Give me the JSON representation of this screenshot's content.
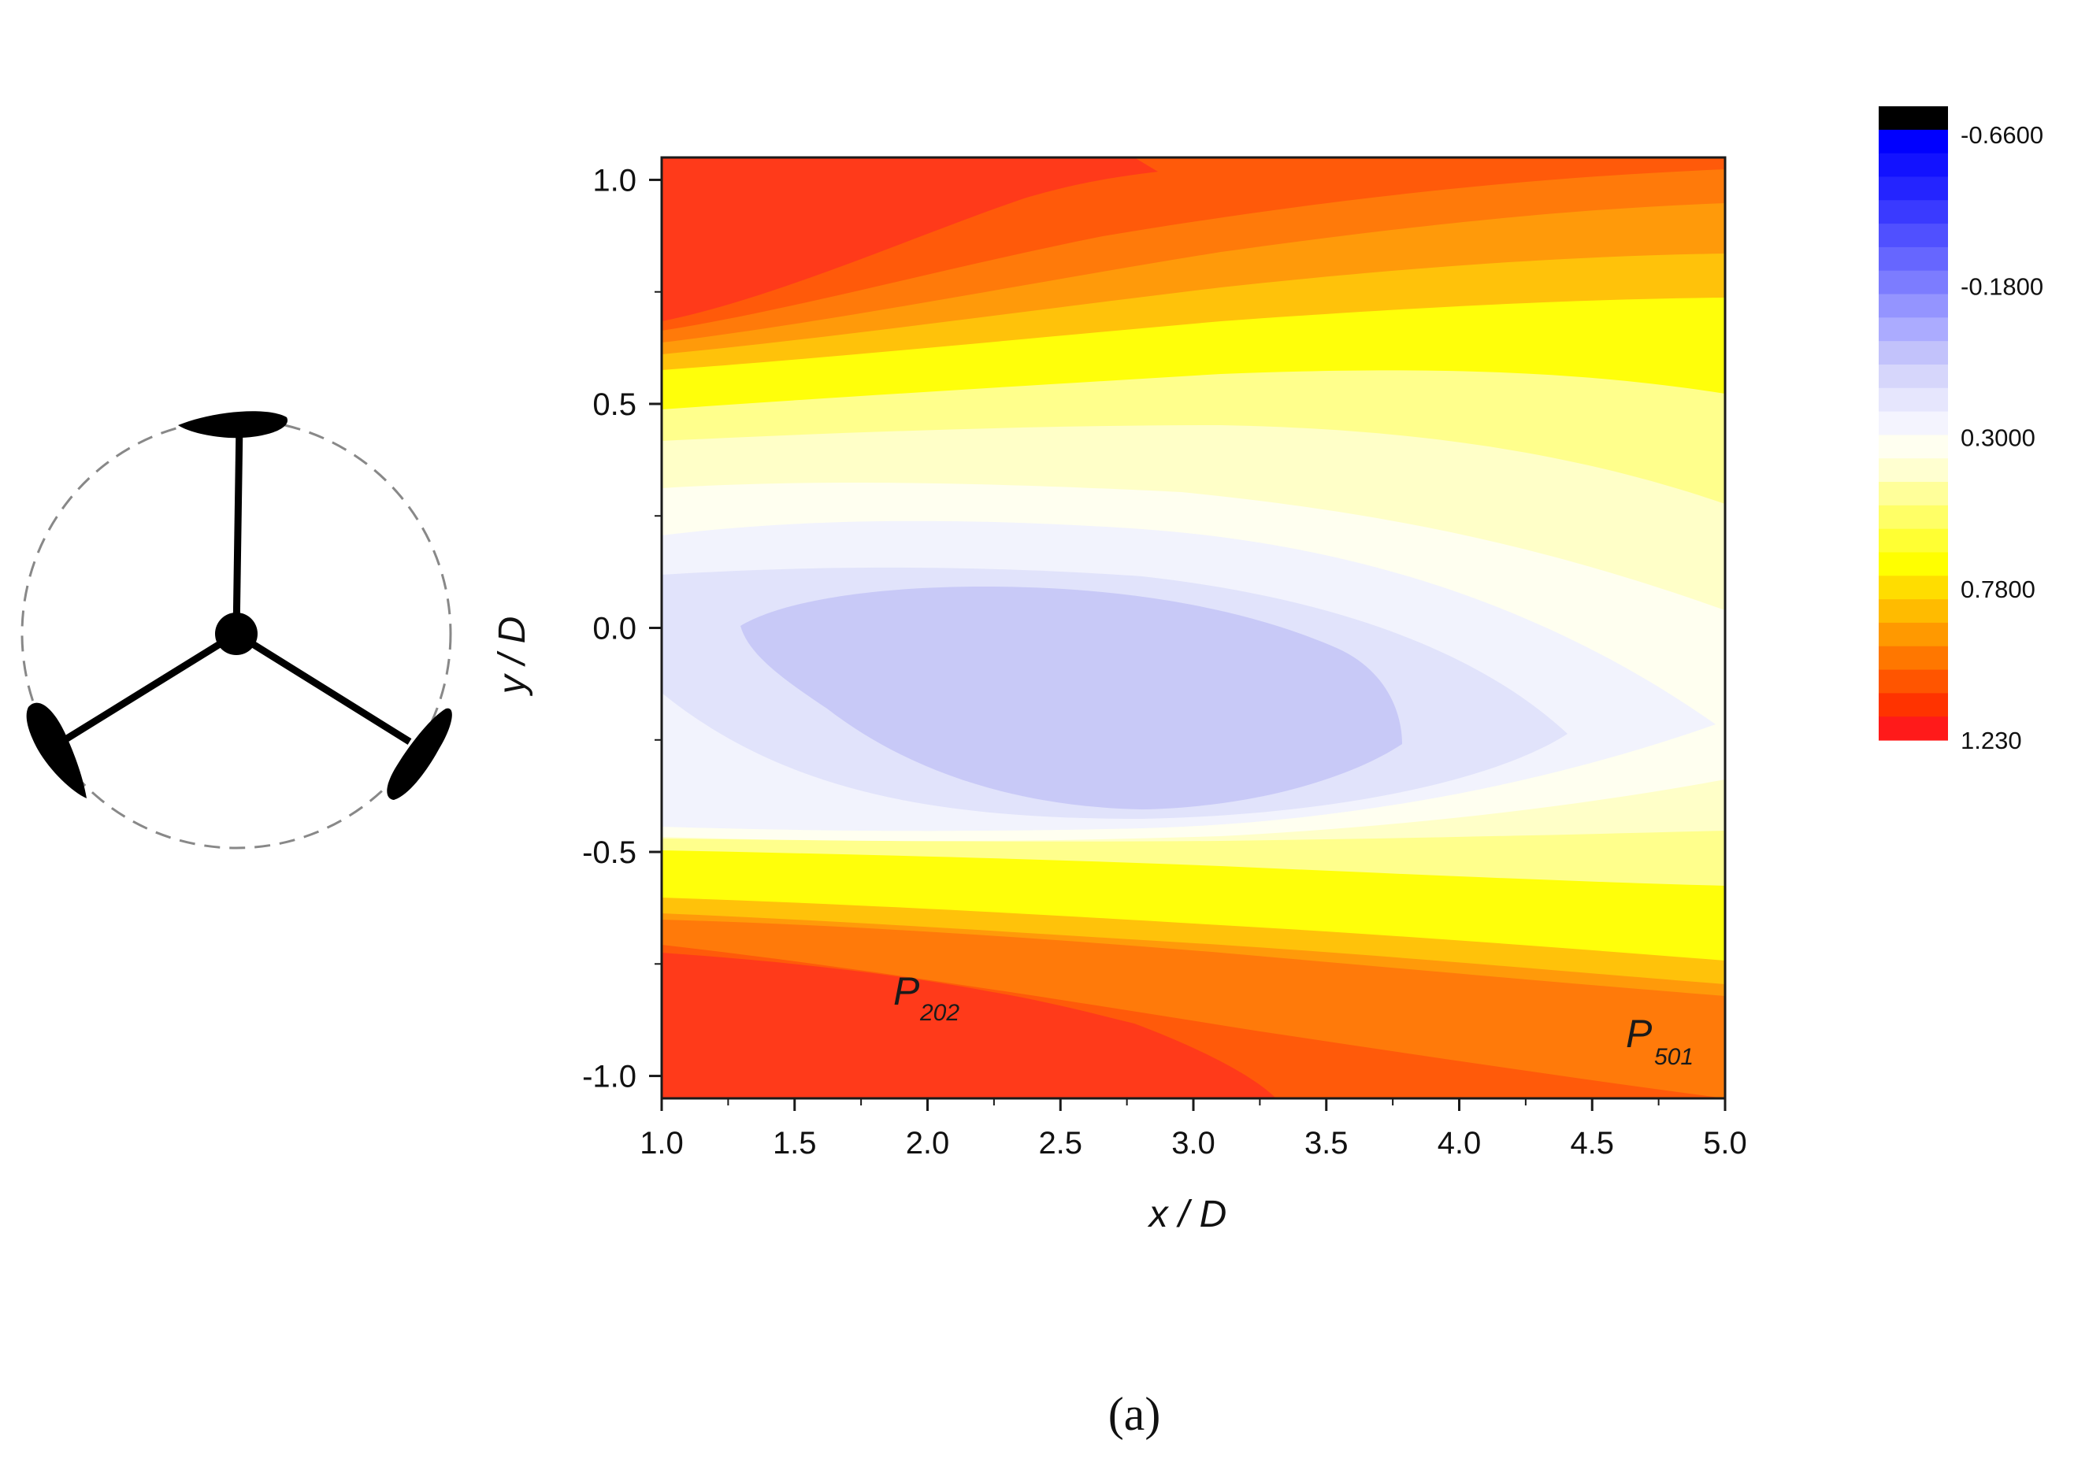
{
  "chart_data": {
    "type": "heatmap",
    "title": "",
    "xlabel": "x / D",
    "ylabel": "y / D",
    "xlim": [
      1.0,
      5.0
    ],
    "ylim": [
      -1.05,
      1.05
    ],
    "x_ticks": [
      "1.0",
      "1.5",
      "2.0",
      "2.5",
      "3.0",
      "3.5",
      "4.0",
      "4.5",
      "5.0"
    ],
    "y_ticks": [
      "1.0",
      "0.5",
      "0.0",
      "-0.5",
      "-1.0"
    ],
    "colorbar": {
      "min": -0.66,
      "max": 1.23,
      "labels": [
        "-0.6600",
        "-0.1800",
        "0.3000",
        "0.7800",
        "1.230"
      ]
    },
    "annotations": [
      {
        "text": "P",
        "sub": "202",
        "x": 1.85,
        "y": -0.83
      },
      {
        "text": "P",
        "sub": "501",
        "x": 4.65,
        "y": -0.94
      }
    ],
    "field_description": "values near 1.2 at top and bottom edges, decreasing to about 0.0 in an elliptical core centered near x/D 2.8, y/D -0.15",
    "grid": false
  },
  "caption": "(a)",
  "colors": {
    "low": "#000000",
    "mid": "#ffffff",
    "high": "#ff1a1a"
  },
  "rotor_icon": {
    "blades": 3,
    "icon": "three-blade-rotor-icon"
  }
}
